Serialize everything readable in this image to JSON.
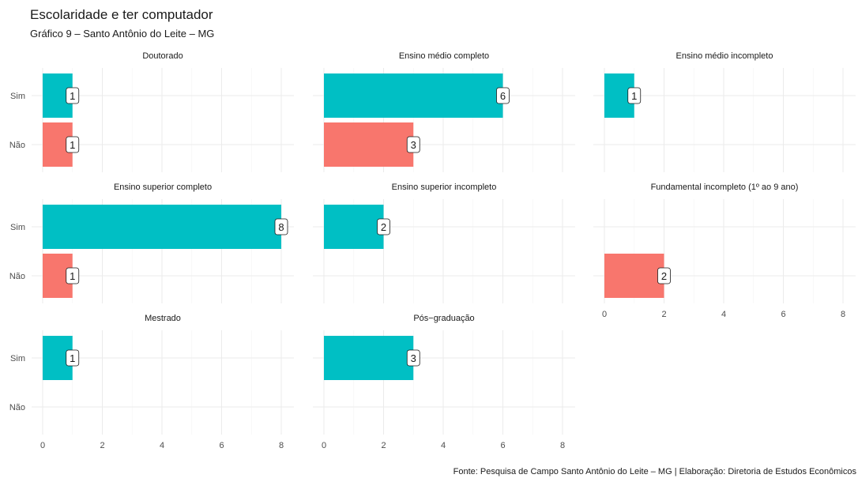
{
  "chart_data": {
    "type": "bar",
    "orientation": "horizontal",
    "title": "Escolaridade e ter computador",
    "subtitle": "Gráfico 9 – Santo Antônio do Leite – MG",
    "caption": "Fonte: Pesquisa de Campo Santo Antônio do Leite – MG | Elaboração: Diretoria de Estudos Econômicos",
    "categories": [
      "Sim",
      "Não"
    ],
    "xlim": [
      0,
      8.4
    ],
    "xticks": [
      0,
      2,
      4,
      6,
      8
    ],
    "colors": {
      "Sim": "#00BFC4",
      "Não": "#F8766D"
    },
    "grid": true,
    "facets": [
      {
        "name": "Doutorado",
        "values": {
          "Sim": 1,
          "Não": 1
        }
      },
      {
        "name": "Ensino médio completo",
        "values": {
          "Sim": 6,
          "Não": 3
        }
      },
      {
        "name": "Ensino médio incompleto",
        "values": {
          "Sim": 1,
          "Não": null
        }
      },
      {
        "name": "Ensino superior completo",
        "values": {
          "Sim": 8,
          "Não": 1
        }
      },
      {
        "name": "Ensino superior incompleto",
        "values": {
          "Sim": 2,
          "Não": null
        }
      },
      {
        "name": "Fundamental incompleto (1º ao 9 ano)",
        "values": {
          "Sim": null,
          "Não": 2
        }
      },
      {
        "name": "Mestrado",
        "values": {
          "Sim": 1,
          "Não": null
        }
      },
      {
        "name": "Pós−graduação",
        "values": {
          "Sim": 3,
          "Não": null
        }
      }
    ]
  }
}
